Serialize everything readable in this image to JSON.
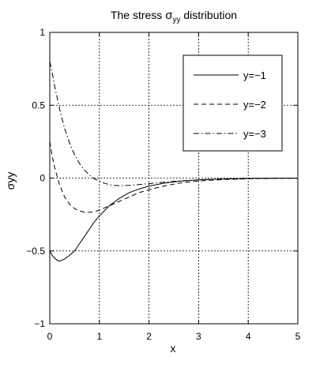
{
  "chart_data": {
    "type": "line",
    "title_parts": [
      "The stress ",
      "σ",
      "yy",
      " distribution"
    ],
    "xlabel": "x",
    "ylabel": "σyy",
    "xlim": [
      0,
      5
    ],
    "ylim": [
      -1,
      1
    ],
    "grid": true,
    "legend_position": "top-right",
    "x_ticks": [
      0,
      1,
      2,
      3,
      4,
      5
    ],
    "y_ticks": [
      -1,
      -0.5,
      0,
      0.5,
      1
    ],
    "x_tick_labels": [
      "0",
      "1",
      "2",
      "3",
      "4",
      "5"
    ],
    "y_tick_labels": [
      "−1",
      "−0.5",
      "0",
      "0.5",
      "1"
    ],
    "series": [
      {
        "name": "y=−1",
        "line_style": "solid",
        "x": [
          0.0,
          0.05,
          0.1,
          0.15,
          0.2,
          0.3,
          0.4,
          0.5,
          0.6,
          0.7,
          0.8,
          0.9,
          1.0,
          1.2,
          1.4,
          1.6,
          1.8,
          2.0,
          2.3,
          2.6,
          3.0,
          3.5,
          4.0,
          4.5,
          5.0
        ],
        "y": [
          -0.5,
          -0.53,
          -0.55,
          -0.565,
          -0.57,
          -0.555,
          -0.53,
          -0.5,
          -0.45,
          -0.4,
          -0.35,
          -0.3,
          -0.26,
          -0.19,
          -0.14,
          -0.1,
          -0.075,
          -0.055,
          -0.035,
          -0.022,
          -0.012,
          -0.006,
          -0.003,
          -0.0015,
          -0.0007
        ]
      },
      {
        "name": "y=−2",
        "line_style": "dashed",
        "x": [
          0.0,
          0.05,
          0.1,
          0.2,
          0.3,
          0.4,
          0.5,
          0.6,
          0.7,
          0.8,
          0.9,
          1.0,
          1.1,
          1.2,
          1.4,
          1.6,
          1.8,
          2.0,
          2.3,
          2.6,
          3.0,
          3.5,
          4.0,
          4.5,
          5.0
        ],
        "y": [
          0.25,
          0.15,
          0.07,
          -0.05,
          -0.13,
          -0.18,
          -0.21,
          -0.225,
          -0.235,
          -0.235,
          -0.23,
          -0.22,
          -0.205,
          -0.19,
          -0.16,
          -0.13,
          -0.1,
          -0.08,
          -0.055,
          -0.035,
          -0.02,
          -0.01,
          -0.005,
          -0.002,
          -0.001
        ]
      },
      {
        "name": "y=−3",
        "line_style": "dashdot",
        "x": [
          0.0,
          0.05,
          0.1,
          0.2,
          0.3,
          0.4,
          0.5,
          0.6,
          0.7,
          0.8,
          0.9,
          1.0,
          1.1,
          1.2,
          1.3,
          1.4,
          1.6,
          1.8,
          2.0,
          2.3,
          2.6,
          3.0,
          3.5,
          4.0,
          4.5,
          5.0
        ],
        "y": [
          0.8,
          0.72,
          0.63,
          0.47,
          0.34,
          0.24,
          0.16,
          0.1,
          0.055,
          0.02,
          -0.005,
          -0.022,
          -0.035,
          -0.045,
          -0.05,
          -0.052,
          -0.05,
          -0.045,
          -0.038,
          -0.028,
          -0.02,
          -0.012,
          -0.006,
          -0.003,
          -0.001,
          -0.0005
        ]
      }
    ]
  }
}
